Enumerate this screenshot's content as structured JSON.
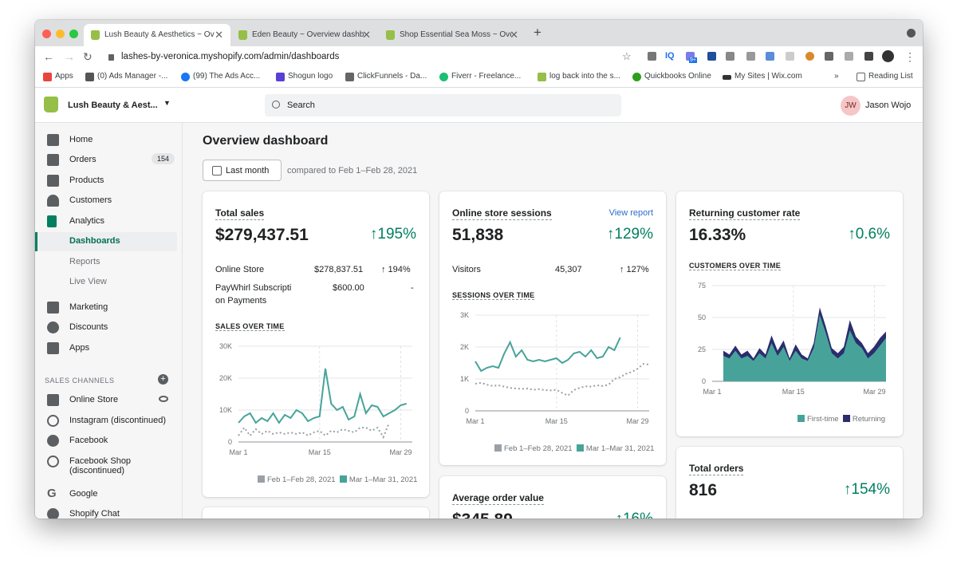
{
  "browser": {
    "tabs": [
      {
        "title": "Lush Beauty & Aesthetics ~ Ov",
        "close": "✕"
      },
      {
        "title": "Eden Beauty ~ Overview dashb",
        "close": "✕"
      },
      {
        "title": "Shop Essential Sea Moss ~ Ove",
        "close": "✕"
      }
    ],
    "new_tab": "+",
    "url": "lashes-by-veronica.myshopify.com/admin/dashboards",
    "bookmarks": [
      "Apps",
      "(0) Ads Manager -...",
      "(99) The Ads Acc...",
      "Shogun logo",
      "ClickFunnels - Da...",
      "Fiverr - Freelance...",
      "log back into the s...",
      "Quickbooks Online",
      "My Sites | Wix.com"
    ],
    "more": "»",
    "reading_list": "Reading List",
    "extensions": [
      "IQ",
      "9+"
    ]
  },
  "topbar": {
    "store_name": "Lush Beauty & Aest...",
    "search_placeholder": "Search",
    "avatar_initials": "JW",
    "user_name": "Jason Wojo"
  },
  "sidebar": {
    "items": [
      {
        "label": "Home",
        "icon": "home-icon"
      },
      {
        "label": "Orders",
        "icon": "orders-icon",
        "badge": "154"
      },
      {
        "label": "Products",
        "icon": "tag-icon"
      },
      {
        "label": "Customers",
        "icon": "person-icon"
      },
      {
        "label": "Analytics",
        "icon": "analytics-icon"
      },
      {
        "label": "Dashboards"
      },
      {
        "label": "Reports"
      },
      {
        "label": "Live View"
      },
      {
        "label": "Marketing",
        "icon": "megaphone-icon"
      },
      {
        "label": "Discounts",
        "icon": "discount-icon"
      },
      {
        "label": "Apps",
        "icon": "apps-icon"
      }
    ],
    "sales_channels_header": "SALES CHANNELS",
    "channels": [
      {
        "label": "Online Store",
        "icon": "store-icon"
      },
      {
        "label": "Instagram (discontinued)",
        "icon": "blocked-icon"
      },
      {
        "label": "Facebook",
        "icon": "facebook-icon"
      },
      {
        "label": "Facebook Shop (discontinued)",
        "line1": "Facebook Shop",
        "line2": "(discontinued)",
        "icon": "blocked-icon"
      },
      {
        "label": "Google",
        "icon": "google-icon"
      },
      {
        "label": "Shopify Chat",
        "icon": "chat-icon"
      }
    ]
  },
  "main": {
    "title": "Overview dashboard",
    "date_button": "Last month",
    "compared": "compared to Feb 1–Feb 28, 2021",
    "total_sales": {
      "title": "Total sales",
      "value": "$279,437.51",
      "delta": "↑195%",
      "rows": [
        {
          "label": "Online Store",
          "value": "$278,837.51",
          "delta": "↑  194%"
        },
        {
          "label_l1": "PayWhirl Subscripti",
          "label_l2": "on Payments",
          "value": "$600.00",
          "delta": "-"
        }
      ],
      "chart_title": "SALES OVER TIME",
      "legend": [
        "Feb 1–Feb 28, 2021",
        "Mar 1–Mar 31, 2021"
      ]
    },
    "sessions": {
      "title": "Online store sessions",
      "link": "View report",
      "value": "51,838",
      "delta": "↑129%",
      "row": {
        "label": "Visitors",
        "value": "45,307",
        "delta": "↑  127%"
      },
      "chart_title": "SESSIONS OVER TIME",
      "legend": [
        "Feb 1–Feb 28, 2021",
        "Mar 1–Mar 31, 2021"
      ]
    },
    "returning": {
      "title": "Returning customer rate",
      "value": "16.33%",
      "delta": "↑0.6%",
      "chart_title": "CUSTOMERS OVER TIME",
      "legend": [
        "First-time",
        "Returning"
      ]
    },
    "total_orders": {
      "title": "Total orders",
      "value": "816",
      "delta": "↑154%"
    },
    "aov": {
      "title": "Average order value",
      "value": "$345.89",
      "delta": "↑16%"
    }
  },
  "colors": {
    "current": "#47a39a",
    "previous": "#9aa0a6",
    "first_time": "#47a39a",
    "returning": "#2b2d6e",
    "positive": "#007f5f"
  },
  "chart_data": [
    {
      "type": "line",
      "ylim": [
        0,
        30000
      ],
      "yticks": [
        "0",
        "10K",
        "20K",
        "30K"
      ],
      "xticks": [
        "Mar 1",
        "Mar 15",
        "Mar 29"
      ],
      "series": [
        {
          "name": "Feb 1–Feb 28, 2021",
          "values": [
            2000,
            4500,
            2000,
            4000,
            2500,
            3500,
            2500,
            3000,
            2500,
            3000,
            2500,
            3000,
            2000,
            3000,
            3500,
            2000,
            3500,
            3000,
            4000,
            3500,
            3000,
            4500,
            4500,
            3500,
            4500,
            1500,
            6000
          ]
        },
        {
          "name": "Mar 1–Mar 31, 2021",
          "values": [
            6000,
            8000,
            9000,
            6000,
            7500,
            6500,
            9000,
            6000,
            8500,
            7500,
            10000,
            9000,
            6500,
            7500,
            8000,
            23000,
            12000,
            10000,
            11000,
            7000,
            8000,
            15000,
            9000,
            11500,
            11000,
            8000,
            9000,
            10000,
            11500,
            12000
          ]
        }
      ]
    },
    {
      "type": "line",
      "ylim": [
        0,
        3000
      ],
      "yticks": [
        "0",
        "1K",
        "2K",
        "3K"
      ],
      "xticks": [
        "Mar 1",
        "Mar 15",
        "Mar 29"
      ],
      "series": [
        {
          "name": "Feb 1–Feb 28, 2021",
          "values": [
            850,
            880,
            820,
            780,
            800,
            760,
            720,
            700,
            690,
            700,
            660,
            680,
            650,
            640,
            660,
            560,
            480,
            650,
            720,
            770,
            760,
            800,
            780,
            820,
            1000,
            1050,
            1160,
            1220,
            1320,
            1470,
            1450
          ]
        },
        {
          "name": "Mar 1–Mar 31, 2021",
          "values": [
            1550,
            1250,
            1350,
            1400,
            1350,
            1800,
            2150,
            1700,
            1900,
            1600,
            1550,
            1600,
            1550,
            1600,
            1650,
            1500,
            1600,
            1800,
            1850,
            1700,
            1900,
            1650,
            1700,
            2000,
            1900,
            2300
          ]
        }
      ]
    },
    {
      "type": "area",
      "ylim": [
        0,
        75
      ],
      "yticks": [
        "0",
        "25",
        "50",
        "75"
      ],
      "xticks": [
        "Mar 1",
        "Mar 15",
        "Mar 29"
      ],
      "series": [
        {
          "name": "First-time",
          "values": [
            20,
            18,
            24,
            18,
            20,
            16,
            22,
            18,
            30,
            20,
            27,
            16,
            24,
            18,
            16,
            26,
            52,
            38,
            22,
            18,
            22,
            40,
            30,
            26,
            18,
            22,
            28,
            34
          ]
        },
        {
          "name": "Returning",
          "values": [
            4,
            3,
            4,
            3,
            4,
            2,
            4,
            3,
            6,
            4,
            5,
            2,
            5,
            3,
            2,
            4,
            6,
            5,
            4,
            4,
            5,
            8,
            5,
            4,
            4,
            5,
            6,
            5
          ]
        }
      ]
    }
  ]
}
